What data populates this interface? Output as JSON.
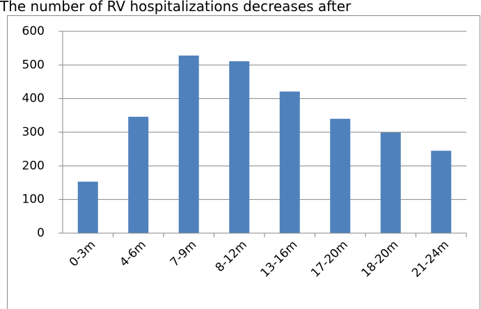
{
  "chart_data": {
    "type": "bar",
    "title": "The number of RV hospitalizations decreases after",
    "categories": [
      "0-3m",
      "4-6m",
      "7-9m",
      "8-12m",
      "13-16m",
      "17-20m",
      "18-20m",
      "21-24m"
    ],
    "values": [
      153,
      346,
      528,
      511,
      421,
      340,
      299,
      245
    ],
    "color": "#4f81bd",
    "ylim": [
      0,
      600
    ],
    "yticks": [
      0,
      100,
      200,
      300,
      400,
      500,
      600
    ],
    "grid": true
  }
}
